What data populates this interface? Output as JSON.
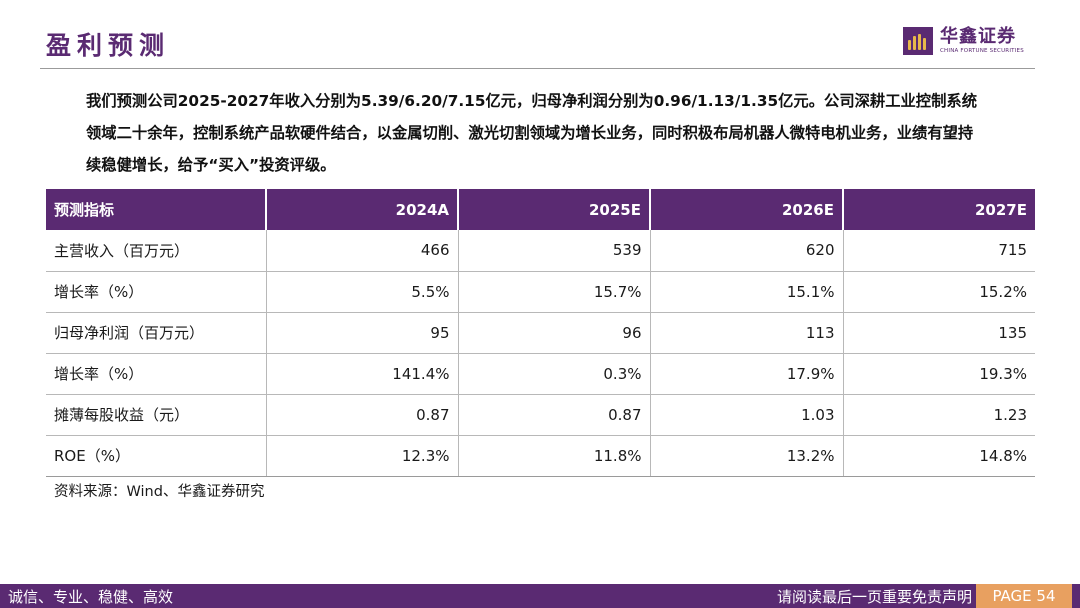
{
  "page_title": "盈利预测",
  "logo": {
    "name_cn": "华鑫证券",
    "name_en": "CHINA FORTUNE SECURITIES",
    "brand_color": "#5a2a72",
    "accent_color": "#e8b84a"
  },
  "summary": "我们预测公司2025-2027年收入分别为5.39/6.20/7.15亿元，归母净利润分别为0.96/1.13/1.35亿元。公司深耕工业控制系统领域二十余年，控制系统产品软硬件结合，以金属切削、激光切割领域为增长业务，同时积极布局机器人微特电机业务，业绩有望持续稳健增长，给予“买入”投资评级。",
  "table": {
    "headers": [
      "预测指标",
      "2024A",
      "2025E",
      "2026E",
      "2027E"
    ],
    "rows": [
      [
        "主营收入（百万元）",
        "466",
        "539",
        "620",
        "715"
      ],
      [
        "增长率（%）",
        "5.5%",
        "15.7%",
        "15.1%",
        "15.2%"
      ],
      [
        "归母净利润（百万元）",
        "95",
        "96",
        "113",
        "135"
      ],
      [
        "增长率（%）",
        "141.4%",
        "0.3%",
        "17.9%",
        "19.3%"
      ],
      [
        "摊薄每股收益（元）",
        "0.87",
        "0.87",
        "1.03",
        "1.23"
      ],
      [
        "ROE（%）",
        "12.3%",
        "11.8%",
        "13.2%",
        "14.8%"
      ]
    ]
  },
  "source": "资料来源：Wind、华鑫证券研究",
  "footer": {
    "left": "诚信、专业、稳健、高效",
    "right": "请阅读最后一页重要免责声明",
    "page": "PAGE 54",
    "page_color": "#e8a060"
  }
}
